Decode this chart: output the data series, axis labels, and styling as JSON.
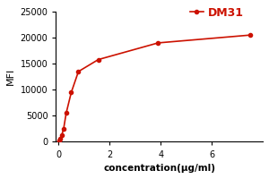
{
  "x": [
    0.03,
    0.06,
    0.12,
    0.2,
    0.3,
    0.5,
    0.78,
    1.56,
    3.9,
    7.5
  ],
  "y": [
    300,
    600,
    1200,
    2500,
    5500,
    9500,
    13500,
    15800,
    19000,
    20500
  ],
  "color": "#cc1100",
  "label": "DM31",
  "xlabel": "concentration(μg/ml)",
  "ylabel": "MFI",
  "xlim": [
    -0.1,
    8
  ],
  "ylim": [
    0,
    25000
  ],
  "yticks": [
    0,
    5000,
    10000,
    15000,
    20000,
    25000
  ],
  "xticks": [
    0,
    2,
    4,
    6
  ],
  "marker": "o",
  "markersize": 3.0,
  "linewidth": 1.2,
  "legend_fontsize": 9,
  "xlabel_fontsize": 7.5,
  "ylabel_fontsize": 8,
  "tick_labelsize": 7
}
